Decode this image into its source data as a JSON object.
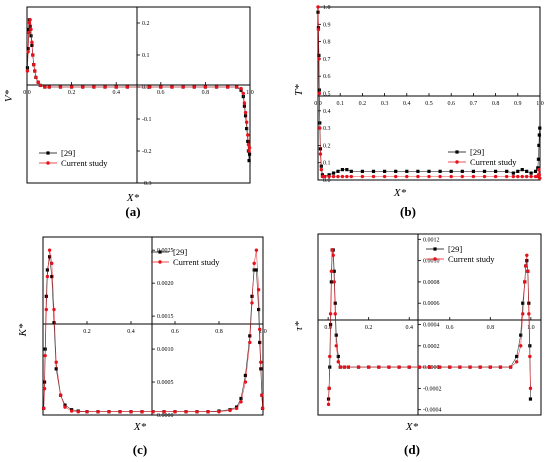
{
  "colors": {
    "reference": "#000000",
    "current": "#e8101a",
    "axis": "#000000"
  },
  "panel_labels": [
    "(a)",
    "(b)",
    "(c)",
    "(d)"
  ],
  "chart_data": [
    {
      "type": "line",
      "xlabel": "X*",
      "ylabel": "V*",
      "xlim": [
        0,
        1
      ],
      "ylim": [
        -0.3,
        0.25
      ],
      "x_ticks": [
        "0.0",
        "0.2",
        "0.4",
        "0.6",
        "0.8",
        "1.0"
      ],
      "y_ticks": [
        "0.2",
        "0.1",
        "0.0",
        "-0.1",
        "-0.2",
        "-0.3"
      ],
      "y_ticks_values": [
        0.2,
        0.1,
        0.0,
        -0.1,
        -0.2,
        -0.3
      ],
      "legend": "bottom-left",
      "series": [
        {
          "name": "[29]",
          "x": [
            0.002,
            0.005,
            0.008,
            0.011,
            0.014,
            0.018,
            0.022,
            0.026,
            0.03,
            0.035,
            0.04,
            0.05,
            0.06,
            0.08,
            0.1,
            0.15,
            0.2,
            0.25,
            0.3,
            0.35,
            0.4,
            0.45,
            0.55,
            0.6,
            0.65,
            0.7,
            0.75,
            0.8,
            0.85,
            0.9,
            0.94,
            0.96,
            0.97,
            0.975,
            0.98,
            0.985,
            0.99,
            0.993,
            0.996,
            0.998
          ],
          "y": [
            0.06,
            0.12,
            0.18,
            0.21,
            0.19,
            0.16,
            0.13,
            0.1,
            0.07,
            0.05,
            0.03,
            0.015,
            0.005,
            0.0,
            0.0,
            0.0,
            0.0,
            0.0,
            0.0,
            0.0,
            0.0,
            0.0,
            0.0,
            0.0,
            0.0,
            0.0,
            0.0,
            0.0,
            0.0,
            0.0,
            0.0,
            -0.01,
            -0.03,
            -0.06,
            -0.09,
            -0.13,
            -0.17,
            -0.2,
            -0.23,
            -0.21
          ]
        },
        {
          "name": "Current study",
          "x": [
            0.002,
            0.005,
            0.008,
            0.011,
            0.014,
            0.018,
            0.022,
            0.026,
            0.03,
            0.035,
            0.04,
            0.05,
            0.06,
            0.08,
            0.1,
            0.15,
            0.2,
            0.25,
            0.3,
            0.35,
            0.4,
            0.45,
            0.55,
            0.6,
            0.65,
            0.7,
            0.75,
            0.8,
            0.85,
            0.9,
            0.94,
            0.96,
            0.97,
            0.975,
            0.98,
            0.985,
            0.99,
            0.993,
            0.996,
            0.998
          ],
          "y": [
            0.05,
            0.11,
            0.17,
            0.2,
            0.21,
            0.18,
            0.14,
            0.1,
            0.07,
            0.05,
            0.03,
            0.015,
            0.005,
            0.0,
            0.0,
            0.0,
            0.0,
            0.0,
            0.0,
            0.0,
            0.0,
            0.0,
            0.0,
            0.0,
            0.0,
            0.0,
            0.0,
            0.0,
            0.0,
            0.0,
            0.0,
            -0.005,
            -0.02,
            -0.05,
            -0.08,
            -0.11,
            -0.15,
            -0.18,
            -0.2,
            -0.19
          ]
        }
      ]
    },
    {
      "type": "line",
      "xlabel": "X*",
      "ylabel": "T*",
      "xlim": [
        0,
        1
      ],
      "ylim": [
        0,
        1
      ],
      "x_ticks": [
        "0.0",
        "0.1",
        "0.2",
        "0.3",
        "0.4",
        "0.5",
        "0.6",
        "0.7",
        "0.8",
        "0.9",
        "1.0"
      ],
      "y_ticks": [
        "0.0",
        "0.1",
        "0.2",
        "0.3",
        "0.4",
        "0.5",
        "0.6",
        "0.7",
        "0.8",
        "0.9",
        "1.0"
      ],
      "legend": "bottom-right",
      "series": [
        {
          "name": "[29]",
          "x": [
            0.0,
            0.002,
            0.004,
            0.006,
            0.008,
            0.011,
            0.015,
            0.02,
            0.03,
            0.05,
            0.07,
            0.09,
            0.11,
            0.13,
            0.15,
            0.2,
            0.25,
            0.3,
            0.35,
            0.4,
            0.45,
            0.5,
            0.55,
            0.6,
            0.65,
            0.7,
            0.75,
            0.8,
            0.85,
            0.88,
            0.9,
            0.92,
            0.94,
            0.96,
            0.98,
            0.99,
            0.993,
            0.995,
            0.997,
            0.999
          ],
          "y": [
            0.97,
            0.88,
            0.72,
            0.52,
            0.33,
            0.18,
            0.08,
            0.03,
            0.02,
            0.03,
            0.04,
            0.05,
            0.06,
            0.06,
            0.05,
            0.05,
            0.05,
            0.05,
            0.05,
            0.05,
            0.05,
            0.05,
            0.05,
            0.05,
            0.05,
            0.05,
            0.05,
            0.05,
            0.05,
            0.04,
            0.05,
            0.06,
            0.05,
            0.04,
            0.05,
            0.07,
            0.12,
            0.2,
            0.26,
            0.3
          ]
        },
        {
          "name": "Current study",
          "x": [
            0.0,
            0.002,
            0.004,
            0.006,
            0.008,
            0.011,
            0.015,
            0.02,
            0.03,
            0.05,
            0.07,
            0.09,
            0.11,
            0.13,
            0.15,
            0.2,
            0.25,
            0.3,
            0.35,
            0.4,
            0.45,
            0.5,
            0.55,
            0.6,
            0.65,
            0.7,
            0.75,
            0.8,
            0.85,
            0.88,
            0.9,
            0.92,
            0.94,
            0.96,
            0.98,
            0.99,
            0.993,
            0.995,
            0.997,
            0.999
          ],
          "y": [
            1.0,
            0.87,
            0.7,
            0.5,
            0.3,
            0.15,
            0.06,
            0.02,
            0.02,
            0.02,
            0.02,
            0.02,
            0.02,
            0.02,
            0.02,
            0.02,
            0.02,
            0.02,
            0.02,
            0.02,
            0.02,
            0.02,
            0.02,
            0.02,
            0.02,
            0.02,
            0.02,
            0.02,
            0.02,
            0.02,
            0.02,
            0.02,
            0.02,
            0.02,
            0.02,
            0.02,
            0.03,
            0.06,
            0.03,
            0.01
          ]
        }
      ]
    },
    {
      "type": "line",
      "xlabel": "X*",
      "ylabel": "K*",
      "xlim": [
        0,
        1
      ],
      "ylim": [
        0,
        0.0027
      ],
      "x_ticks": [
        "0.2",
        "0.4",
        "0.6",
        "0.8",
        "1.0"
      ],
      "y_ticks": [
        "0.0025",
        "0.0020",
        "0.0015",
        "0.0010",
        "0.0005",
        "0.0000"
      ],
      "y_ticks_values": [
        0.0025,
        0.002,
        0.0015,
        0.001,
        0.0005,
        0.0
      ],
      "legend": "top-right",
      "series": [
        {
          "name": "[29]",
          "x": [
            0.003,
            0.007,
            0.01,
            0.015,
            0.02,
            0.03,
            0.04,
            0.05,
            0.06,
            0.08,
            0.1,
            0.13,
            0.16,
            0.2,
            0.25,
            0.3,
            0.35,
            0.4,
            0.45,
            0.5,
            0.55,
            0.6,
            0.65,
            0.7,
            0.75,
            0.8,
            0.85,
            0.88,
            0.9,
            0.92,
            0.94,
            0.95,
            0.96,
            0.97,
            0.98,
            0.985,
            0.99,
            0.995,
            0.998
          ],
          "y": [
            0.0001,
            0.0005,
            0.001,
            0.0018,
            0.0022,
            0.0024,
            0.0021,
            0.0014,
            0.0007,
            0.0003,
            0.00015,
            8e-05,
            6e-05,
            5e-05,
            5e-05,
            5e-05,
            5e-05,
            5e-05,
            5e-05,
            5e-05,
            5e-05,
            5e-05,
            5e-05,
            5e-05,
            5e-05,
            6e-05,
            8e-05,
            0.00012,
            0.00025,
            0.0006,
            0.0012,
            0.0018,
            0.0022,
            0.0022,
            0.0016,
            0.0011,
            0.0007,
            0.0003,
            0.0001
          ]
        },
        {
          "name": "Current study",
          "x": [
            0.003,
            0.007,
            0.01,
            0.015,
            0.02,
            0.03,
            0.04,
            0.05,
            0.06,
            0.08,
            0.1,
            0.13,
            0.16,
            0.2,
            0.25,
            0.3,
            0.35,
            0.4,
            0.45,
            0.5,
            0.55,
            0.6,
            0.65,
            0.7,
            0.75,
            0.8,
            0.85,
            0.88,
            0.9,
            0.92,
            0.94,
            0.95,
            0.96,
            0.97,
            0.98,
            0.985,
            0.99,
            0.995,
            0.998
          ],
          "y": [
            0.0001,
            0.0004,
            0.0009,
            0.0016,
            0.0021,
            0.0025,
            0.0023,
            0.0016,
            0.0008,
            0.0003,
            0.00012,
            6e-05,
            5e-05,
            5e-05,
            5e-05,
            5e-05,
            5e-05,
            5e-05,
            5e-05,
            5e-05,
            5e-05,
            5e-05,
            5e-05,
            5e-05,
            5e-05,
            5e-05,
            7e-05,
            0.0001,
            0.0002,
            0.0005,
            0.0011,
            0.0017,
            0.0023,
            0.0025,
            0.0019,
            0.0013,
            0.0008,
            0.0003,
            0.0001
          ]
        }
      ]
    },
    {
      "type": "line",
      "xlabel": "X*",
      "ylabel": "τ*",
      "xlim": [
        -0.05,
        1.05
      ],
      "ylim": [
        -0.00045,
        0.00125
      ],
      "x_ticks": [
        "0.0",
        "0.2",
        "0.4",
        "0.6",
        "0.8",
        "1.0"
      ],
      "y_ticks": [
        "0.0012",
        "0.0010",
        "0.0008",
        "0.0006",
        "0.0004",
        "0.0002",
        "0.0000",
        "-0.0002",
        "-0.0004"
      ],
      "y_ticks_values": [
        0.0012,
        0.001,
        0.0008,
        0.0006,
        0.0004,
        0.0002,
        0.0,
        -0.0002,
        -0.0004
      ],
      "legend": "top-right",
      "series": [
        {
          "name": "[29]",
          "x": [
            0.002,
            0.005,
            0.008,
            0.012,
            0.016,
            0.02,
            0.025,
            0.03,
            0.035,
            0.04,
            0.05,
            0.06,
            0.08,
            0.1,
            0.15,
            0.2,
            0.25,
            0.3,
            0.35,
            0.4,
            0.45,
            0.5,
            0.55,
            0.6,
            0.65,
            0.7,
            0.75,
            0.8,
            0.85,
            0.9,
            0.93,
            0.95,
            0.96,
            0.97,
            0.975,
            0.98,
            0.985,
            0.99,
            0.995,
            0.998
          ],
          "y": [
            -0.0003,
            -0.0002,
            0.0,
            0.0004,
            0.0008,
            0.0011,
            0.0011,
            0.0009,
            0.0006,
            0.0003,
            0.0001,
            0.0,
            0.0,
            0.0,
            0.0,
            0.0,
            0.0,
            0.0,
            0.0,
            0.0,
            0.0,
            0.0,
            0.0,
            0.0,
            0.0,
            0.0,
            0.0,
            0.0,
            0.0,
            0.0,
            0.0001,
            0.0003,
            0.0006,
            0.0008,
            0.00095,
            0.001,
            0.0009,
            0.0006,
            0.0002,
            -0.0003
          ]
        },
        {
          "name": "Current study",
          "x": [
            0.002,
            0.005,
            0.008,
            0.012,
            0.016,
            0.02,
            0.025,
            0.03,
            0.035,
            0.04,
            0.05,
            0.06,
            0.08,
            0.1,
            0.15,
            0.2,
            0.25,
            0.3,
            0.35,
            0.4,
            0.45,
            0.5,
            0.55,
            0.6,
            0.65,
            0.7,
            0.75,
            0.8,
            0.85,
            0.9,
            0.93,
            0.95,
            0.96,
            0.97,
            0.975,
            0.98,
            0.985,
            0.99,
            0.995,
            0.998
          ],
          "y": [
            -0.00035,
            -0.0002,
            0.0001,
            0.0005,
            0.0009,
            0.0011,
            0.00105,
            0.0008,
            0.0005,
            0.0002,
            5e-05,
            0.0,
            0.0,
            0.0,
            0.0,
            0.0,
            0.0,
            0.0,
            0.0,
            0.0,
            0.0,
            0.0,
            0.0,
            0.0,
            0.0,
            0.0,
            0.0,
            0.0,
            0.0,
            0.0,
            5e-05,
            0.0002,
            0.0005,
            0.0008,
            0.00095,
            0.00105,
            0.0009,
            0.0005,
            0.0001,
            -0.0002
          ]
        }
      ]
    }
  ]
}
